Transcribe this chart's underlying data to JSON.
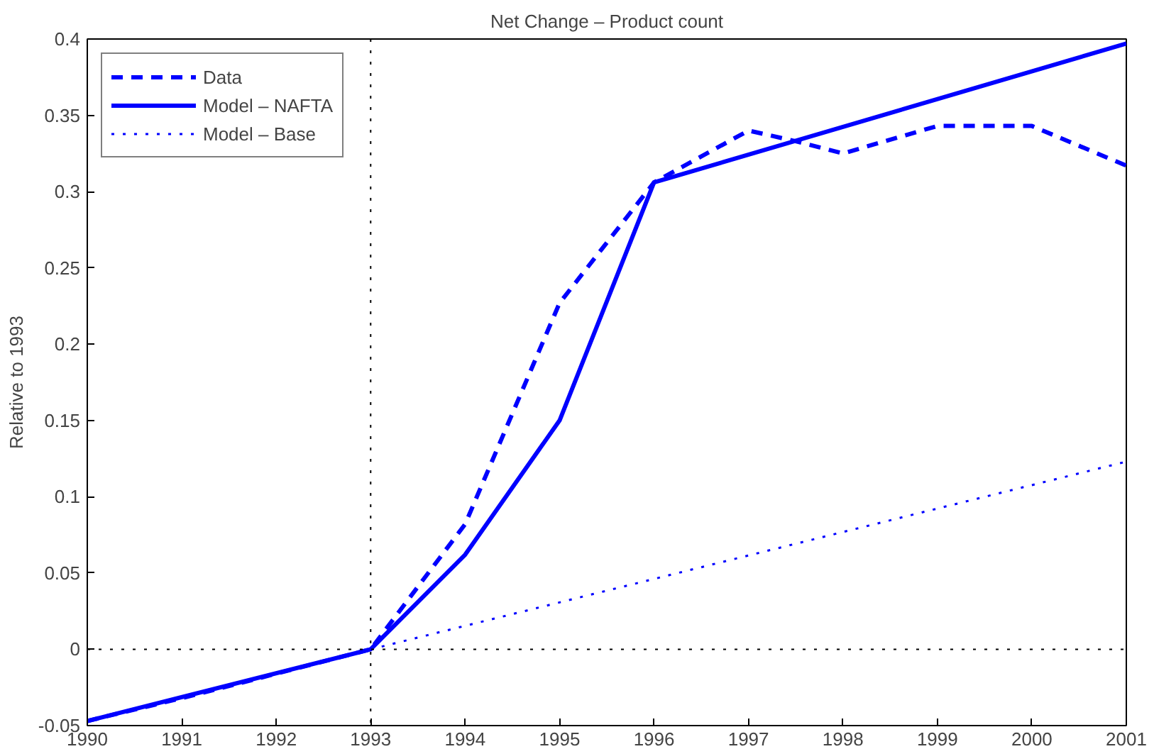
{
  "chart_data": {
    "type": "line",
    "title": "Net Change – Product count",
    "ylabel": "Relative to 1993",
    "xlim": [
      1990,
      2001
    ],
    "xticks": [
      1990,
      1991,
      1992,
      1993,
      1994,
      1995,
      1996,
      1997,
      1998,
      1999,
      2000,
      2001
    ],
    "ylim": [
      -0.05,
      0.4
    ],
    "yticks": [
      -0.05,
      0,
      0.05,
      0.1,
      0.15,
      0.2,
      0.25,
      0.3,
      0.35,
      0.4
    ],
    "grid": false,
    "legend": "top left",
    "ref_lines": [
      {
        "axis": "x",
        "value": 1993,
        "color": "#000000",
        "line_style": "dotted"
      },
      {
        "axis": "y",
        "value": 0,
        "color": "#000000",
        "line_style": "dotted"
      }
    ],
    "series": [
      {
        "name": "Data",
        "color": "#0000ff",
        "line_style": "dashed",
        "x": [
          1990,
          1991,
          1992,
          1993,
          1994,
          1995,
          1996,
          1997,
          1997.5,
          1998,
          1999,
          2000,
          2001
        ],
        "values": [
          -0.047,
          -0.032,
          -0.016,
          0,
          0.082,
          0.227,
          0.306,
          0.34,
          0.333,
          0.325,
          0.343,
          0.343,
          0.317
        ]
      },
      {
        "name": "Model – NAFTA",
        "color": "#0000ff",
        "line_style": "solid",
        "x": [
          1990,
          1993,
          1994,
          1995,
          1996,
          2001
        ],
        "values": [
          -0.047,
          0,
          0.062,
          0.15,
          0.306,
          0.397
        ]
      },
      {
        "name": "Model – Base",
        "color": "#0000ff",
        "line_style": "dotted",
        "x": [
          1993,
          2001
        ],
        "values": [
          0,
          0.123
        ]
      }
    ]
  }
}
